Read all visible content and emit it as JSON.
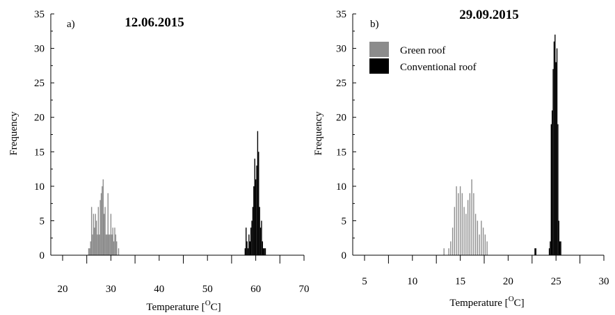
{
  "chart_data": [
    {
      "type": "bar",
      "panel_label": "a)",
      "title": "12.06.2015",
      "xlabel": "Temperature [",
      "xlabel_sup": "O",
      "xlabel_unit": "C]",
      "ylabel": "Frequency",
      "xlim": [
        20,
        70
      ],
      "ylim": [
        0,
        35
      ],
      "xticks": [
        "20",
        "30",
        "40",
        "50",
        "60",
        "70"
      ],
      "yticks": [
        "0",
        "5",
        "10",
        "15",
        "20",
        "25",
        "30",
        "35"
      ],
      "bin_width": 0.2,
      "series": [
        {
          "name": "Green roof",
          "color": "#8c8c8c",
          "x": [
            25.4,
            25.6,
            25.8,
            26.0,
            26.2,
            26.4,
            26.6,
            26.8,
            27.0,
            27.2,
            27.4,
            27.6,
            27.8,
            28.0,
            28.2,
            28.4,
            28.6,
            28.8,
            29.0,
            29.2,
            29.4,
            29.6,
            29.8,
            30.0,
            30.2,
            30.4,
            30.6,
            30.8,
            31.0,
            31.2,
            31.6
          ],
          "values": [
            1,
            1,
            2,
            7,
            3,
            6,
            4,
            6,
            5,
            3,
            7,
            3,
            8,
            9,
            10,
            11,
            6,
            7,
            3,
            3,
            9,
            3,
            3,
            6,
            3,
            4,
            2,
            4,
            3,
            2,
            1
          ]
        },
        {
          "name": "Conventional roof",
          "color": "#000000",
          "x": [
            57.8,
            58.0,
            58.2,
            58.4,
            58.6,
            58.8,
            59.0,
            59.2,
            59.4,
            59.6,
            59.8,
            60.0,
            60.2,
            60.4,
            60.6,
            60.8,
            61.0,
            61.2,
            61.4,
            61.6,
            61.8,
            62.0
          ],
          "values": [
            1,
            4,
            2,
            1,
            3,
            2,
            4,
            5,
            7,
            10,
            14,
            11,
            13,
            18,
            15,
            7,
            4,
            5,
            2,
            1,
            1,
            1
          ]
        }
      ]
    },
    {
      "type": "bar",
      "panel_label": "b)",
      "title": "29.09.2015",
      "xlabel": "Temperature [",
      "xlabel_sup": "O",
      "xlabel_unit": "C]",
      "ylabel": "Frequency",
      "xlim": [
        5,
        30
      ],
      "ylim": [
        0,
        35
      ],
      "xticks": [
        "5",
        "10",
        "15",
        "20",
        "25",
        "30"
      ],
      "yticks": [
        "0",
        "5",
        "10",
        "15",
        "20",
        "25",
        "30",
        "35"
      ],
      "bin_width": 0.1,
      "legend": {
        "position": "top-left",
        "entries": [
          {
            "label": "Green roof",
            "color": "#8c8c8c"
          },
          {
            "label": "Conventional roof",
            "color": "#000000"
          }
        ]
      },
      "series": [
        {
          "name": "Green roof",
          "color": "#8c8c8c",
          "x": [
            13.3,
            13.8,
            14.0,
            14.2,
            14.4,
            14.6,
            14.8,
            15.0,
            15.2,
            15.4,
            15.6,
            15.8,
            16.0,
            16.2,
            16.4,
            16.6,
            16.8,
            17.0,
            17.2,
            17.4,
            17.6,
            17.8
          ],
          "values": [
            1,
            1,
            2,
            4,
            7,
            10,
            9,
            10,
            9,
            7,
            6,
            8,
            9,
            11,
            9,
            6,
            5,
            3,
            5,
            4,
            3,
            2
          ]
        },
        {
          "name": "Conventional roof",
          "color": "#000000",
          "x": [
            22.8,
            22.9,
            24.3,
            24.4,
            24.5,
            24.6,
            24.7,
            24.8,
            24.9,
            25.0,
            25.1,
            25.2,
            25.3,
            25.4,
            25.5
          ],
          "values": [
            1,
            1,
            1,
            2,
            19,
            21,
            27,
            31,
            32,
            28,
            30,
            19,
            5,
            2,
            2
          ]
        }
      ]
    }
  ]
}
